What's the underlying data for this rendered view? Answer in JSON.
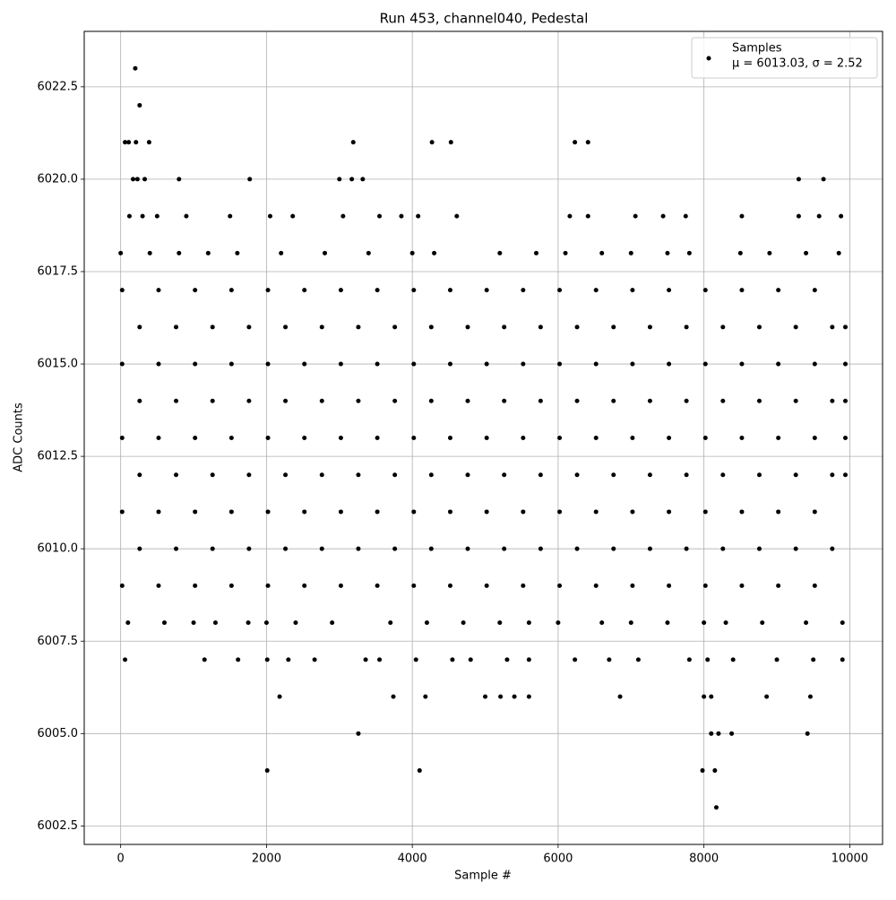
{
  "chart_data": {
    "type": "scatter",
    "title": "Run 453, channel040, Pedestal",
    "x_label": "Sample #",
    "y_label": "ADC Counts",
    "legend_text": "μ = 6013.03, σ = 2.52",
    "legend": "upper right",
    "grid": true,
    "xlim": [
      -500,
      10450
    ],
    "ylim": [
      6002.0,
      6024.0
    ],
    "xticks": [
      0,
      2000,
      4000,
      6000,
      8000,
      10000
    ],
    "yticks": [
      6002.5,
      {
        "value": 6005,
        "label": "6005.0"
      },
      6007.5,
      {
        "value": 6010,
        "label": "6010.0"
      },
      6012.5,
      {
        "value": 6015,
        "label": "6015.0"
      },
      6017.5,
      {
        "value": 6020,
        "label": "6020.0"
      },
      6022.5
    ],
    "x": [
      200,
      260,
      60,
      110,
      210,
      390,
      3190,
      4270,
      4530,
      6230,
      6410,
      170,
      230,
      330,
      800,
      1770,
      3000,
      3170,
      3320,
      9300,
      9640,
      120,
      300,
      500,
      900,
      1500,
      2050,
      2360,
      3050,
      3550,
      3850,
      4080,
      4610,
      6160,
      6410,
      7060,
      7440,
      7750,
      8520,
      9300,
      9580,
      9880,
      0,
      400,
      800,
      1200,
      1600,
      2200,
      2800,
      3400,
      4000,
      4300,
      5200,
      5700,
      6100,
      6600,
      7000,
      7500,
      7800,
      8500,
      8900,
      9400,
      9850,
      100,
      600,
      1000,
      1300,
      1750,
      2000,
      2400,
      2900,
      3700,
      4200,
      4700,
      5200,
      5600,
      6000,
      6600,
      7000,
      7500,
      8000,
      8300,
      8800,
      9400,
      9900,
      60,
      1150,
      1610,
      2010,
      2300,
      2660,
      3360,
      3550,
      4050,
      4550,
      4800,
      5300,
      5600,
      6230,
      6700,
      7100,
      7800,
      8050,
      8400,
      9000,
      9500,
      9900,
      2180,
      3740,
      4180,
      5000,
      5210,
      5400,
      5600,
      6850,
      8000,
      8100,
      8860,
      9460,
      3260,
      8100,
      8200,
      8380,
      9420,
      2010,
      4100,
      7980,
      8150,
      8170,
      20,
      520,
      1020,
      1520,
      2020,
      2520,
      3020,
      3520,
      4020,
      4520,
      5020,
      5520,
      6020,
      6520,
      7020,
      7520,
      8020,
      8520,
      9020,
      9520,
      260,
      760,
      1260,
      1760,
      2260,
      2760,
      3260,
      3760,
      4260,
      4760,
      5260,
      5760,
      6260,
      6760,
      7260,
      7760,
      8260,
      8760,
      9260,
      9760,
      20,
      520,
      1020,
      1520,
      2020,
      2520,
      3020,
      3520,
      4020,
      4520,
      5020,
      5520,
      6020,
      6520,
      7020,
      7520,
      8020,
      8520,
      9020,
      9520,
      260,
      760,
      1260,
      1760,
      2260,
      2760,
      3260,
      3760,
      4260,
      4760,
      5260,
      5760,
      6260,
      6760,
      7260,
      7760,
      8260,
      8760,
      9260,
      9760,
      20,
      520,
      1020,
      1520,
      2020,
      2520,
      3020,
      3520,
      4020,
      4520,
      5020,
      5520,
      6020,
      6520,
      7020,
      7520,
      8020,
      8520,
      9020,
      9520,
      260,
      760,
      1260,
      1760,
      2260,
      2760,
      3260,
      3760,
      4260,
      4760,
      5260,
      5760,
      6260,
      6760,
      7260,
      7760,
      8260,
      8760,
      9260,
      9760,
      20,
      520,
      1020,
      1520,
      2020,
      2520,
      3020,
      3520,
      4020,
      4520,
      5020,
      5520,
      6020,
      6520,
      7020,
      7520,
      8020,
      8520,
      9020,
      9520,
      260,
      760,
      1260,
      1760,
      2260,
      2760,
      3260,
      3760,
      4260,
      4760,
      5260,
      5760,
      6260,
      6760,
      7260,
      7760,
      8260,
      8760,
      9260,
      9760,
      20,
      520,
      1020,
      1520,
      2020,
      2520,
      3020,
      3520,
      4020,
      4520,
      5020,
      5520,
      6020,
      6520,
      7020,
      7520,
      8020,
      8520,
      9020,
      9520,
      9940,
      9940,
      9940,
      9940,
      9940
    ],
    "series": [
      {
        "name": "Samples",
        "color": "#000000",
        "values": [
          6023,
          6022,
          6021,
          6021,
          6021,
          6021,
          6021,
          6021,
          6021,
          6021,
          6021,
          6020,
          6020,
          6020,
          6020,
          6020,
          6020,
          6020,
          6020,
          6020,
          6020,
          6019,
          6019,
          6019,
          6019,
          6019,
          6019,
          6019,
          6019,
          6019,
          6019,
          6019,
          6019,
          6019,
          6019,
          6019,
          6019,
          6019,
          6019,
          6019,
          6019,
          6019,
          6018,
          6018,
          6018,
          6018,
          6018,
          6018,
          6018,
          6018,
          6018,
          6018,
          6018,
          6018,
          6018,
          6018,
          6018,
          6018,
          6018,
          6018,
          6018,
          6018,
          6018,
          6008,
          6008,
          6008,
          6008,
          6008,
          6008,
          6008,
          6008,
          6008,
          6008,
          6008,
          6008,
          6008,
          6008,
          6008,
          6008,
          6008,
          6008,
          6008,
          6008,
          6008,
          6008,
          6007,
          6007,
          6007,
          6007,
          6007,
          6007,
          6007,
          6007,
          6007,
          6007,
          6007,
          6007,
          6007,
          6007,
          6007,
          6007,
          6007,
          6007,
          6007,
          6007,
          6007,
          6007,
          6006,
          6006,
          6006,
          6006,
          6006,
          6006,
          6006,
          6006,
          6006,
          6006,
          6006,
          6006,
          6005,
          6005,
          6005,
          6005,
          6005,
          6004,
          6004,
          6004,
          6004,
          6003,
          6009,
          6009,
          6009,
          6009,
          6009,
          6009,
          6009,
          6009,
          6009,
          6009,
          6009,
          6009,
          6009,
          6009,
          6009,
          6009,
          6009,
          6009,
          6009,
          6009,
          6010,
          6010,
          6010,
          6010,
          6010,
          6010,
          6010,
          6010,
          6010,
          6010,
          6010,
          6010,
          6010,
          6010,
          6010,
          6010,
          6010,
          6010,
          6010,
          6010,
          6011,
          6011,
          6011,
          6011,
          6011,
          6011,
          6011,
          6011,
          6011,
          6011,
          6011,
          6011,
          6011,
          6011,
          6011,
          6011,
          6011,
          6011,
          6011,
          6011,
          6012,
          6012,
          6012,
          6012,
          6012,
          6012,
          6012,
          6012,
          6012,
          6012,
          6012,
          6012,
          6012,
          6012,
          6012,
          6012,
          6012,
          6012,
          6012,
          6012,
          6013,
          6013,
          6013,
          6013,
          6013,
          6013,
          6013,
          6013,
          6013,
          6013,
          6013,
          6013,
          6013,
          6013,
          6013,
          6013,
          6013,
          6013,
          6013,
          6013,
          6014,
          6014,
          6014,
          6014,
          6014,
          6014,
          6014,
          6014,
          6014,
          6014,
          6014,
          6014,
          6014,
          6014,
          6014,
          6014,
          6014,
          6014,
          6014,
          6014,
          6015,
          6015,
          6015,
          6015,
          6015,
          6015,
          6015,
          6015,
          6015,
          6015,
          6015,
          6015,
          6015,
          6015,
          6015,
          6015,
          6015,
          6015,
          6015,
          6015,
          6016,
          6016,
          6016,
          6016,
          6016,
          6016,
          6016,
          6016,
          6016,
          6016,
          6016,
          6016,
          6016,
          6016,
          6016,
          6016,
          6016,
          6016,
          6016,
          6016,
          6017,
          6017,
          6017,
          6017,
          6017,
          6017,
          6017,
          6017,
          6017,
          6017,
          6017,
          6017,
          6017,
          6017,
          6017,
          6017,
          6017,
          6017,
          6017,
          6017,
          6012,
          6013,
          6014,
          6015,
          6016
        ]
      }
    ]
  }
}
